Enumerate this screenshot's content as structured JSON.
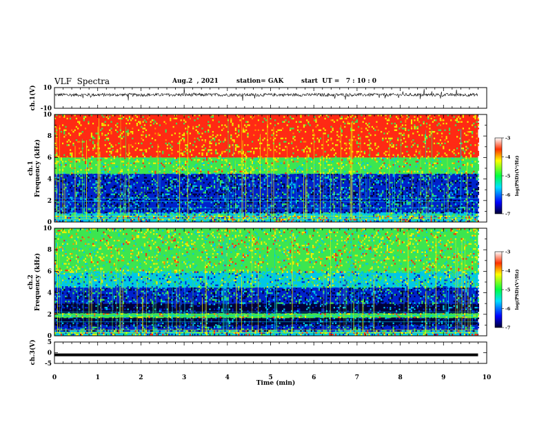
{
  "header": {
    "title": "VLF  Spectra",
    "date": "Aug.2  , 2021",
    "station": "station= GAK",
    "start_ut": "start  UT =   7 : 10 : 0"
  },
  "chart_data": [
    {
      "type": "line",
      "name": "ch1-waveform",
      "ylabel": "ch.1(V)",
      "ylim": [
        -10,
        10
      ],
      "yticks": [
        "10",
        "-10"
      ],
      "xlim": [
        0,
        9.8
      ],
      "baseline": 3,
      "noise_amplitude": 1.5,
      "spike_amplitude": 5
    },
    {
      "type": "heatmap",
      "name": "ch1-spectrogram",
      "ylabel": "Frequency (kHz)",
      "channel_label": "ch.1",
      "xlim": [
        0,
        9.8
      ],
      "ylim": [
        0,
        10
      ],
      "yticks": [
        "0",
        "2",
        "4",
        "6",
        "8",
        "10"
      ],
      "layers": [
        {
          "from": 0,
          "to": 0.6,
          "level": "mixed"
        },
        {
          "from": 0.6,
          "to": 0.9,
          "level": "cyan"
        },
        {
          "from": 0.9,
          "to": 4.5,
          "level": "blue"
        },
        {
          "from": 4.5,
          "to": 6.0,
          "level": "green"
        },
        {
          "from": 6.0,
          "to": 10,
          "level": "red"
        }
      ],
      "colorbar": {
        "label": "log(PSD)(V²/Hz)",
        "min": "-7",
        "max": "-3",
        "ticks": [
          "-3",
          "-4",
          "-5",
          "-6",
          "-7"
        ]
      }
    },
    {
      "type": "heatmap",
      "name": "ch2-spectrogram",
      "ylabel": "Frequency (kHz)",
      "channel_label": "ch.2",
      "xlim": [
        0,
        9.8
      ],
      "ylim": [
        0,
        10
      ],
      "yticks": [
        "0",
        "2",
        "4",
        "6",
        "8",
        "10"
      ],
      "layers": [
        {
          "from": 0,
          "to": 0.5,
          "level": "mixed"
        },
        {
          "from": 0.5,
          "to": 1.0,
          "level": "blue"
        },
        {
          "from": 1.0,
          "to": 1.7,
          "level": "dark"
        },
        {
          "from": 1.7,
          "to": 2.1,
          "level": "green"
        },
        {
          "from": 2.1,
          "to": 3.0,
          "level": "dark"
        },
        {
          "from": 3.0,
          "to": 4.5,
          "level": "blue"
        },
        {
          "from": 4.5,
          "to": 6.0,
          "level": "cyan"
        },
        {
          "from": 6.0,
          "to": 10,
          "level": "green"
        }
      ],
      "colorbar": {
        "label": "log(PSD)(V²/Hz)",
        "min": "-7",
        "max": "-3",
        "ticks": [
          "-3",
          "-4",
          "-5",
          "-6",
          "-7"
        ]
      }
    },
    {
      "type": "line",
      "name": "ch3-waveform",
      "ylabel": "ch.3(V)",
      "ylim": [
        -5,
        5
      ],
      "yticks": [
        "5",
        "0",
        "-5"
      ],
      "xlim": [
        0,
        9.8
      ],
      "baseline": -1
    }
  ],
  "xaxis": {
    "label": "Time  (min)",
    "xlim": [
      0,
      10
    ],
    "ticks": [
      "0",
      "1",
      "2",
      "3",
      "4",
      "5",
      "6",
      "7",
      "8",
      "9",
      "10"
    ]
  },
  "colors": {
    "dark": "#00003a",
    "blue": "#0022cc",
    "cyan": "#00c8e6",
    "green": "#3ce650",
    "yellow": "#f0f000",
    "red": "#ff2a14"
  }
}
